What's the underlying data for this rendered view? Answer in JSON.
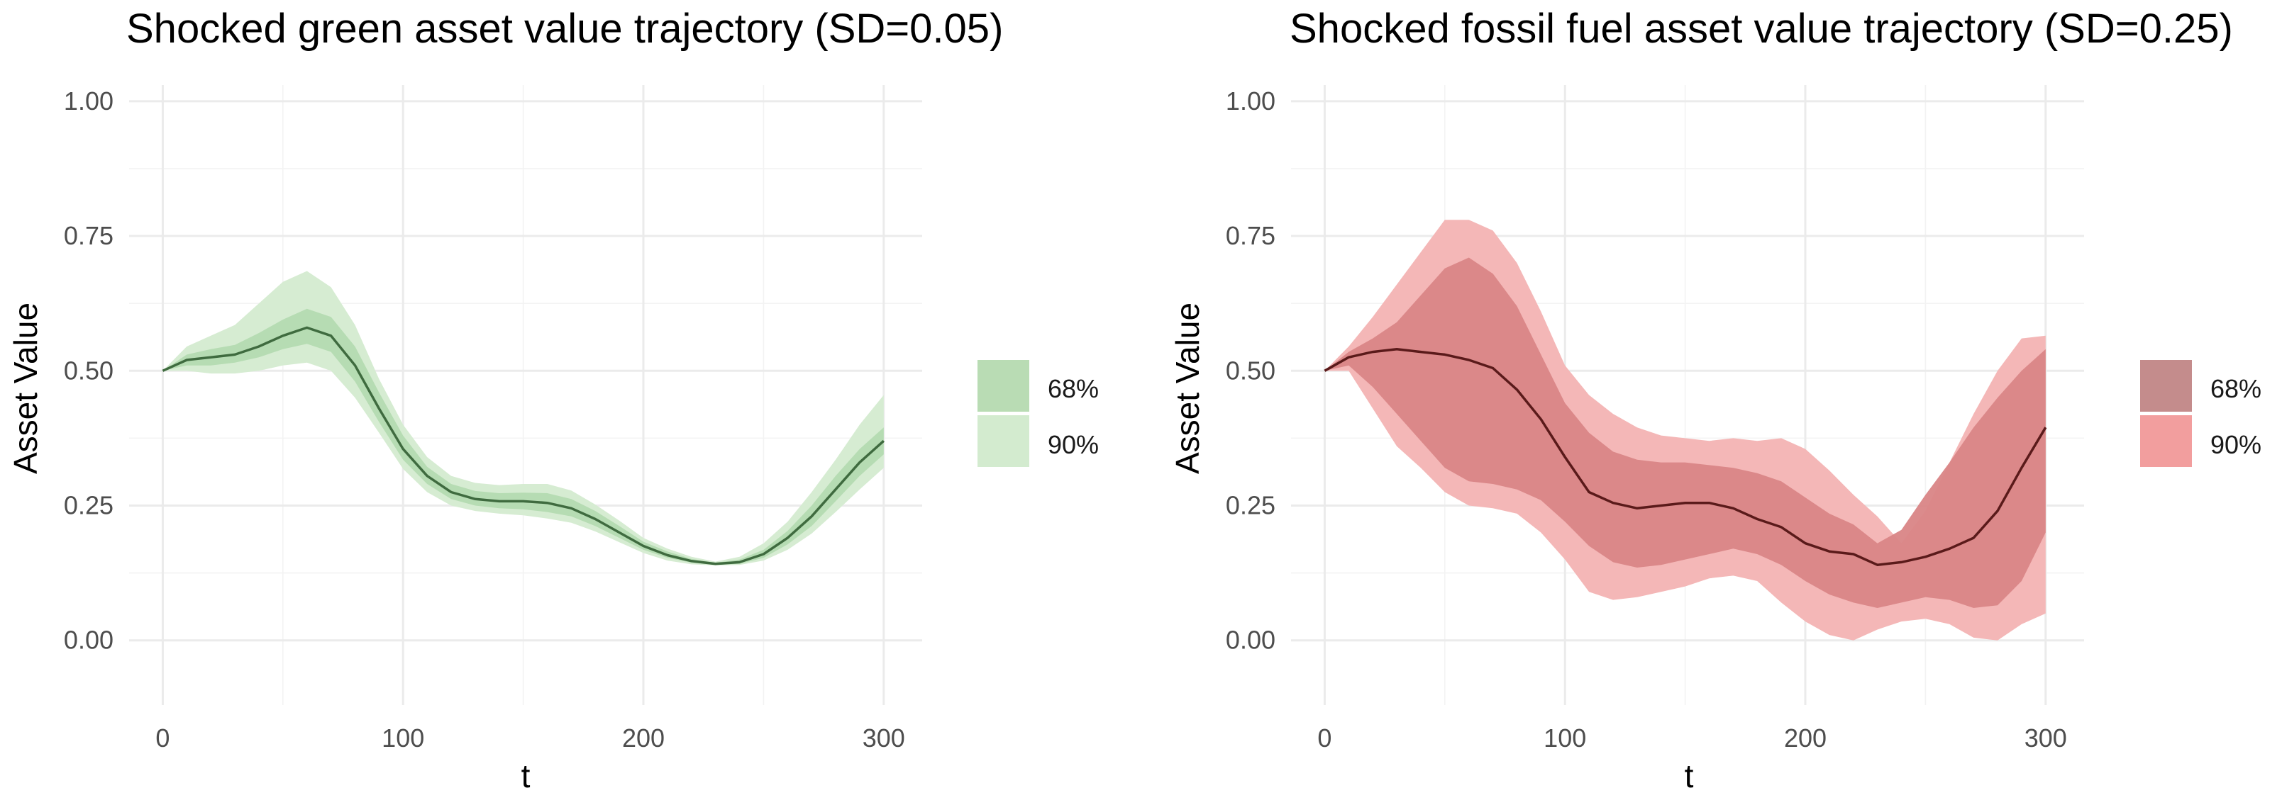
{
  "chart_data": [
    {
      "type": "area",
      "title": "Shocked green asset value trajectory (SD=0.05)",
      "xlabel": "t",
      "ylabel": "Asset Value",
      "xlim": [
        -14,
        316
      ],
      "ylim": [
        -0.12,
        1.03
      ],
      "xticks": [
        0,
        100,
        200,
        300
      ],
      "yticks": [
        0.0,
        0.25,
        0.5,
        0.75,
        1.0
      ],
      "xtick_labels": [
        "0",
        "100",
        "200",
        "300"
      ],
      "ytick_labels": [
        "0.00",
        "0.25",
        "0.50",
        "0.75",
        "1.00"
      ],
      "grid": true,
      "legend_position": "right",
      "colors": {
        "median": "#3f6b3f",
        "band68": "#b4dbb1",
        "band90": "#d6ecd2",
        "band68_key": "#b9dcb4",
        "band90_key": "#d3ebcf"
      },
      "series": [
        {
          "name": "median",
          "x": [
            0,
            10,
            20,
            30,
            40,
            50,
            60,
            70,
            80,
            90,
            100,
            110,
            120,
            130,
            140,
            150,
            160,
            170,
            180,
            190,
            200,
            210,
            220,
            230,
            240,
            250,
            260,
            270,
            280,
            290,
            300
          ],
          "values": [
            0.5,
            0.52,
            0.525,
            0.53,
            0.545,
            0.565,
            0.58,
            0.565,
            0.51,
            0.43,
            0.355,
            0.305,
            0.275,
            0.262,
            0.258,
            0.258,
            0.255,
            0.245,
            0.225,
            0.2,
            0.175,
            0.158,
            0.147,
            0.142,
            0.145,
            0.16,
            0.19,
            0.23,
            0.28,
            0.33,
            0.37
          ]
        },
        {
          "name": "68%",
          "lower": [
            0.5,
            0.51,
            0.51,
            0.515,
            0.525,
            0.54,
            0.55,
            0.535,
            0.48,
            0.405,
            0.335,
            0.29,
            0.262,
            0.25,
            0.245,
            0.243,
            0.238,
            0.23,
            0.212,
            0.19,
            0.168,
            0.153,
            0.144,
            0.14,
            0.142,
            0.153,
            0.178,
            0.212,
            0.258,
            0.305,
            0.345
          ],
          "upper": [
            0.5,
            0.53,
            0.54,
            0.548,
            0.57,
            0.595,
            0.615,
            0.6,
            0.545,
            0.46,
            0.38,
            0.322,
            0.29,
            0.277,
            0.273,
            0.274,
            0.273,
            0.262,
            0.24,
            0.212,
            0.183,
            0.165,
            0.151,
            0.144,
            0.15,
            0.168,
            0.203,
            0.25,
            0.305,
            0.355,
            0.395
          ]
        },
        {
          "name": "90%",
          "lower": [
            0.5,
            0.5,
            0.495,
            0.495,
            0.5,
            0.51,
            0.515,
            0.5,
            0.45,
            0.385,
            0.318,
            0.275,
            0.25,
            0.24,
            0.235,
            0.232,
            0.226,
            0.218,
            0.202,
            0.182,
            0.162,
            0.148,
            0.141,
            0.139,
            0.14,
            0.148,
            0.168,
            0.198,
            0.238,
            0.28,
            0.32
          ],
          "upper": [
            0.5,
            0.545,
            0.565,
            0.585,
            0.625,
            0.665,
            0.685,
            0.655,
            0.585,
            0.485,
            0.4,
            0.34,
            0.305,
            0.292,
            0.288,
            0.29,
            0.29,
            0.278,
            0.252,
            0.222,
            0.19,
            0.17,
            0.155,
            0.146,
            0.155,
            0.18,
            0.22,
            0.275,
            0.335,
            0.4,
            0.455
          ]
        }
      ]
    },
    {
      "type": "area",
      "title": "Shocked fossil fuel asset value trajectory (SD=0.25)",
      "xlabel": "t",
      "ylabel": "Asset Value",
      "xlim": [
        -14,
        316
      ],
      "ylim": [
        -0.12,
        1.03
      ],
      "xticks": [
        0,
        100,
        200,
        300
      ],
      "yticks": [
        0.0,
        0.25,
        0.5,
        0.75,
        1.0
      ],
      "xtick_labels": [
        "0",
        "100",
        "200",
        "300"
      ],
      "ytick_labels": [
        "0.00",
        "0.25",
        "0.50",
        "0.75",
        "1.00"
      ],
      "grid": true,
      "legend_position": "right",
      "colors": {
        "median": "#5a1a1a",
        "band68": "#d98586",
        "band90": "#f4b7b7",
        "band68_key": "#c48c8c",
        "band90_key": "#f29e9e"
      },
      "series": [
        {
          "name": "median",
          "x": [
            0,
            10,
            20,
            30,
            40,
            50,
            60,
            70,
            80,
            90,
            100,
            110,
            120,
            130,
            140,
            150,
            160,
            170,
            180,
            190,
            200,
            210,
            220,
            230,
            240,
            250,
            260,
            270,
            280,
            290,
            300
          ],
          "values": [
            0.5,
            0.525,
            0.535,
            0.54,
            0.535,
            0.53,
            0.52,
            0.505,
            0.465,
            0.41,
            0.34,
            0.275,
            0.255,
            0.245,
            0.25,
            0.255,
            0.255,
            0.245,
            0.225,
            0.21,
            0.18,
            0.165,
            0.16,
            0.14,
            0.145,
            0.155,
            0.17,
            0.19,
            0.24,
            0.32,
            0.395
          ]
        },
        {
          "name": "68%",
          "lower": [
            0.5,
            0.51,
            0.47,
            0.42,
            0.37,
            0.32,
            0.295,
            0.29,
            0.28,
            0.26,
            0.22,
            0.175,
            0.145,
            0.135,
            0.14,
            0.15,
            0.16,
            0.17,
            0.16,
            0.14,
            0.11,
            0.085,
            0.07,
            0.06,
            0.07,
            0.08,
            0.075,
            0.06,
            0.065,
            0.11,
            0.2
          ],
          "upper": [
            0.5,
            0.535,
            0.56,
            0.59,
            0.64,
            0.69,
            0.71,
            0.68,
            0.62,
            0.53,
            0.44,
            0.385,
            0.35,
            0.335,
            0.33,
            0.33,
            0.325,
            0.32,
            0.31,
            0.295,
            0.265,
            0.235,
            0.215,
            0.18,
            0.205,
            0.27,
            0.33,
            0.395,
            0.45,
            0.5,
            0.54
          ]
        },
        {
          "name": "90%",
          "lower": [
            0.5,
            0.5,
            0.43,
            0.36,
            0.32,
            0.275,
            0.25,
            0.245,
            0.235,
            0.2,
            0.15,
            0.09,
            0.075,
            0.08,
            0.09,
            0.1,
            0.115,
            0.12,
            0.11,
            0.07,
            0.035,
            0.01,
            0.0,
            0.02,
            0.035,
            0.04,
            0.03,
            0.005,
            0.0,
            0.03,
            0.05
          ]
        },
        {
          "name": "90% upper",
          "upper": [
            0.5,
            0.545,
            0.6,
            0.66,
            0.72,
            0.78,
            0.78,
            0.76,
            0.7,
            0.61,
            0.51,
            0.455,
            0.42,
            0.395,
            0.38,
            0.375,
            0.37,
            0.375,
            0.37,
            0.375,
            0.355,
            0.315,
            0.27,
            0.23,
            0.18,
            0.24,
            0.33,
            0.42,
            0.5,
            0.56,
            0.565
          ]
        }
      ]
    }
  ],
  "legend": {
    "entries": [
      "68%",
      "90%"
    ]
  }
}
